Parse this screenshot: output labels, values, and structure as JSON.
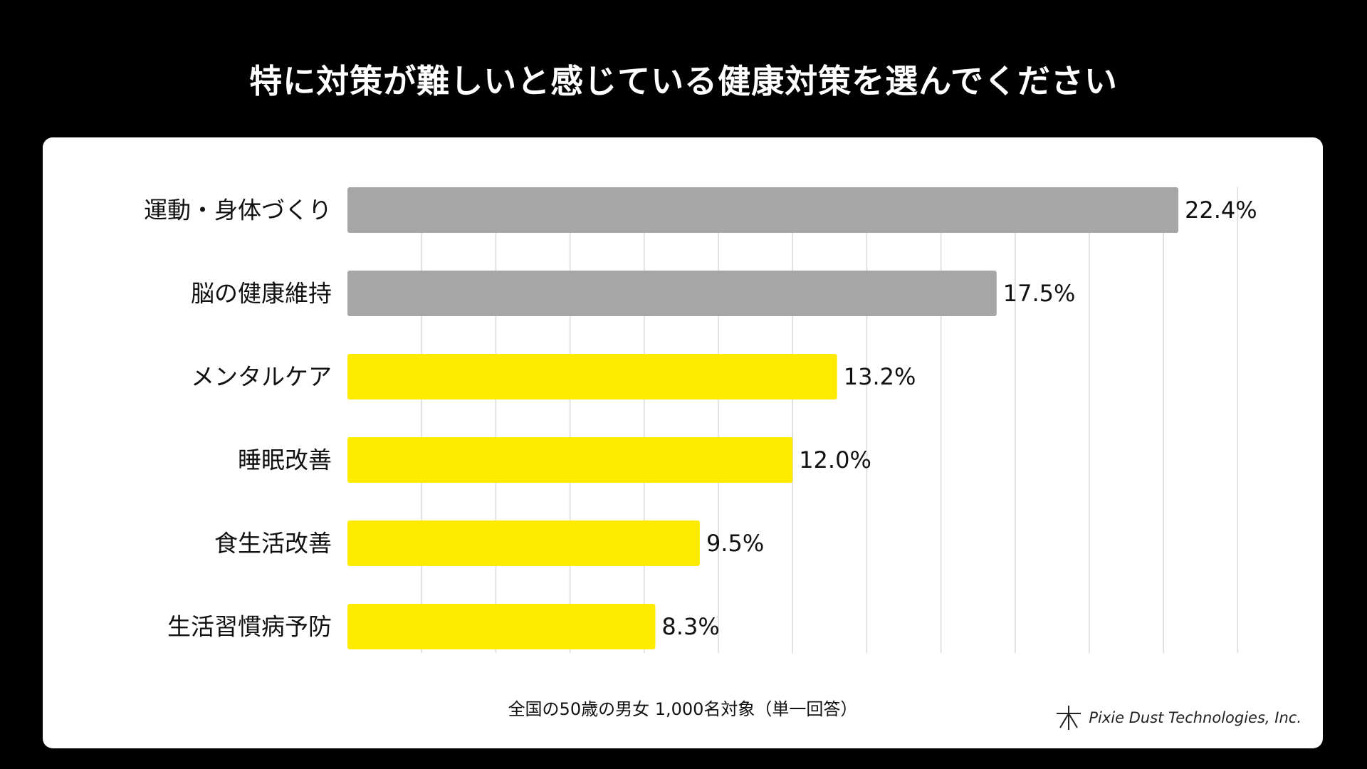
{
  "title": "特に対策が難しいと感じている健康対策を選んでください",
  "footnote": "全国の50歳の男女 1,000名対象（単一回答）",
  "brand": {
    "name": "Pixie Dust Technologies, Inc.",
    "icon": "asterisk-logo-icon"
  },
  "colors": {
    "background": "#000000",
    "card": "#ffffff",
    "bar_gray": "#a6a6a6",
    "bar_yellow": "#ffeb00",
    "grid": "#d9d9d9"
  },
  "chart_data": {
    "type": "bar",
    "orientation": "horizontal",
    "title": "特に対策が難しいと感じている健康対策を選んでください",
    "categories": [
      "運動・身体づくり",
      "脳の健康維持",
      "メンタルケア",
      "睡眠改善",
      "食生活改善",
      "生活習慣病予防"
    ],
    "values": [
      22.4,
      17.5,
      13.2,
      12.0,
      9.5,
      8.3
    ],
    "value_labels": [
      "22.4%",
      "17.5%",
      "13.2%",
      "12.0%",
      "9.5%",
      "8.3%"
    ],
    "bar_colors": [
      "#a6a6a6",
      "#a6a6a6",
      "#ffeb00",
      "#ffeb00",
      "#ffeb00",
      "#ffeb00"
    ],
    "xlim": [
      0,
      24
    ],
    "grid_step": 2,
    "grid": true,
    "xlabel": "",
    "ylabel": ""
  }
}
